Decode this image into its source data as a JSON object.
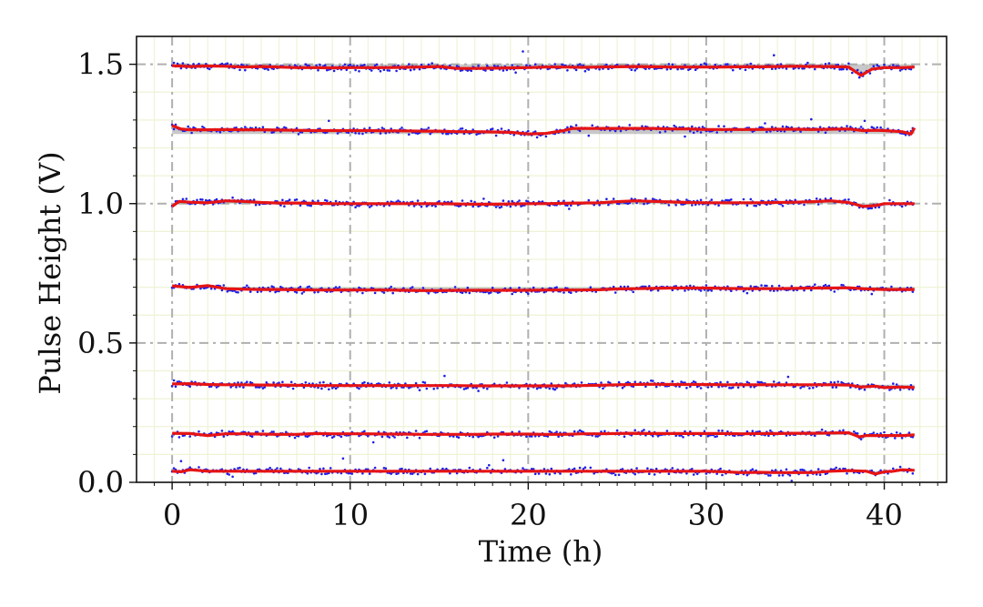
{
  "chart_data": {
    "type": "line",
    "title": "",
    "xlabel": "Time (h)",
    "ylabel": "Pulse Height (V)",
    "xlim": [
      -2,
      43.5
    ],
    "ylim": [
      0.0,
      1.6
    ],
    "xticks": [
      0,
      10,
      20,
      30,
      40
    ],
    "xtick_labels": [
      "0",
      "10",
      "20",
      "30",
      "40"
    ],
    "yticks": [
      0.0,
      0.5,
      1.0,
      1.5
    ],
    "ytick_labels": [
      "0.0",
      "0.5",
      "1.0",
      "1.5"
    ],
    "grid": {
      "major": true,
      "minor": true
    },
    "legend": "none",
    "colors": {
      "scatter": "#1f1fe6",
      "fit_line": "#e61414",
      "band": "#9a9a9a",
      "major_grid": "#b0b0b0",
      "minor_grid": "#eef3d6"
    },
    "series": [
      {
        "level": 1.5,
        "x": [
          0,
          1,
          2,
          3,
          4,
          5,
          6,
          7,
          8,
          9,
          10,
          11,
          12,
          13,
          14,
          15,
          16,
          17,
          18,
          19,
          20,
          21,
          22,
          23,
          24,
          25,
          26,
          27,
          28,
          29,
          30,
          31,
          32,
          33,
          34,
          35,
          36,
          37,
          38,
          38.7,
          39.3,
          40,
          41,
          41.7
        ],
        "y": [
          1.495,
          1.492,
          1.494,
          1.493,
          1.49,
          1.492,
          1.49,
          1.488,
          1.488,
          1.487,
          1.488,
          1.488,
          1.488,
          1.489,
          1.49,
          1.492,
          1.485,
          1.485,
          1.486,
          1.487,
          1.488,
          1.49,
          1.49,
          1.489,
          1.49,
          1.491,
          1.492,
          1.491,
          1.49,
          1.49,
          1.49,
          1.49,
          1.491,
          1.491,
          1.492,
          1.493,
          1.492,
          1.492,
          1.49,
          1.46,
          1.482,
          1.488,
          1.488,
          1.49
        ]
      },
      {
        "level": 1.25,
        "x": [
          0,
          0.5,
          1,
          2,
          3,
          4,
          5,
          6,
          7,
          8,
          9,
          10,
          11,
          12,
          13,
          14,
          15,
          16,
          17,
          18,
          19,
          20,
          21,
          22,
          22.5,
          23,
          24,
          25,
          26,
          27,
          28,
          29,
          30,
          31,
          32,
          33,
          34,
          35,
          36,
          37,
          38,
          38.8,
          39.5,
          40,
          41,
          41.5,
          41.7
        ],
        "y": [
          1.28,
          1.268,
          1.265,
          1.265,
          1.266,
          1.265,
          1.265,
          1.264,
          1.263,
          1.262,
          1.262,
          1.262,
          1.262,
          1.261,
          1.261,
          1.26,
          1.26,
          1.258,
          1.258,
          1.257,
          1.256,
          1.25,
          1.252,
          1.262,
          1.27,
          1.27,
          1.27,
          1.27,
          1.27,
          1.27,
          1.268,
          1.268,
          1.266,
          1.266,
          1.266,
          1.266,
          1.267,
          1.267,
          1.266,
          1.267,
          1.268,
          1.262,
          1.263,
          1.262,
          1.258,
          1.25,
          1.272
        ]
      },
      {
        "level": 1.0,
        "x": [
          0,
          0.4,
          1,
          2,
          3,
          4,
          5,
          6,
          7,
          8,
          9,
          10,
          11,
          12,
          13,
          14,
          15,
          16,
          17,
          18,
          19,
          20,
          21,
          22,
          23,
          24,
          25,
          26,
          27,
          28,
          29,
          30,
          31,
          32,
          33,
          34,
          35,
          36,
          37,
          38,
          38.8,
          39.5,
          40,
          41,
          41.7
        ],
        "y": [
          0.99,
          1.008,
          1.005,
          1.003,
          1.01,
          1.008,
          1.004,
          1.002,
          1.002,
          1.001,
          1.0,
          1.0,
          1.0,
          1.0,
          1.0,
          1.0,
          1.0,
          0.999,
          0.998,
          0.998,
          0.999,
          1.0,
          1.0,
          1.001,
          1.002,
          1.003,
          1.007,
          1.01,
          1.008,
          1.006,
          1.004,
          1.003,
          1.003,
          1.003,
          1.003,
          1.004,
          1.005,
          1.007,
          1.01,
          1.004,
          0.99,
          0.993,
          1.0,
          1.0,
          1.0
        ]
      },
      {
        "level": 0.7,
        "x": [
          0,
          1,
          2,
          3,
          4,
          5,
          6,
          7,
          8,
          9,
          10,
          11,
          12,
          13,
          14,
          15,
          16,
          17,
          18,
          19,
          20,
          21,
          22,
          23,
          24,
          25,
          26,
          27,
          28,
          29,
          30,
          31,
          32,
          33,
          34,
          35,
          36,
          37,
          38,
          39,
          40,
          41,
          41.7
        ],
        "y": [
          0.705,
          0.699,
          0.706,
          0.695,
          0.693,
          0.692,
          0.692,
          0.691,
          0.69,
          0.69,
          0.69,
          0.69,
          0.69,
          0.689,
          0.688,
          0.688,
          0.689,
          0.689,
          0.689,
          0.689,
          0.689,
          0.69,
          0.69,
          0.69,
          0.691,
          0.694,
          0.695,
          0.696,
          0.697,
          0.697,
          0.697,
          0.696,
          0.695,
          0.695,
          0.695,
          0.696,
          0.697,
          0.697,
          0.698,
          0.694,
          0.692,
          0.692,
          0.692
        ]
      },
      {
        "level": 0.35,
        "x": [
          0,
          1,
          2,
          3,
          4,
          5,
          6,
          7,
          8,
          9,
          10,
          11,
          12,
          13,
          14,
          15,
          16,
          17,
          18,
          19,
          20,
          21,
          22,
          23,
          24,
          25,
          26,
          27,
          28,
          29,
          30,
          31,
          32,
          33,
          34,
          35,
          36,
          37,
          38,
          38.7,
          39.5,
          40,
          41,
          41.7
        ],
        "y": [
          0.353,
          0.354,
          0.351,
          0.35,
          0.35,
          0.349,
          0.349,
          0.348,
          0.347,
          0.347,
          0.347,
          0.347,
          0.347,
          0.347,
          0.347,
          0.347,
          0.347,
          0.346,
          0.346,
          0.346,
          0.346,
          0.346,
          0.346,
          0.347,
          0.348,
          0.35,
          0.351,
          0.352,
          0.351,
          0.351,
          0.351,
          0.35,
          0.35,
          0.35,
          0.35,
          0.35,
          0.35,
          0.35,
          0.349,
          0.342,
          0.345,
          0.34,
          0.342,
          0.34
        ]
      },
      {
        "level": 0.17,
        "x": [
          0,
          1,
          2,
          3,
          4,
          5,
          6,
          7,
          8,
          9,
          10,
          11,
          12,
          13,
          14,
          15,
          16,
          17,
          18,
          19,
          20,
          21,
          22,
          23,
          24,
          25,
          26,
          27,
          28,
          29,
          30,
          31,
          32,
          33,
          34,
          35,
          36,
          37,
          38,
          38.6,
          39,
          40,
          41,
          41.7
        ],
        "y": [
          0.176,
          0.175,
          0.168,
          0.174,
          0.174,
          0.173,
          0.172,
          0.172,
          0.175,
          0.174,
          0.174,
          0.174,
          0.173,
          0.173,
          0.172,
          0.172,
          0.172,
          0.172,
          0.173,
          0.173,
          0.173,
          0.172,
          0.172,
          0.174,
          0.174,
          0.175,
          0.176,
          0.175,
          0.175,
          0.175,
          0.175,
          0.175,
          0.174,
          0.175,
          0.175,
          0.176,
          0.176,
          0.177,
          0.178,
          0.163,
          0.168,
          0.168,
          0.168,
          0.17
        ]
      },
      {
        "level": 0.04,
        "x": [
          0,
          0.5,
          1,
          2,
          3,
          4,
          5,
          6,
          7,
          8,
          9,
          10,
          11,
          12,
          13,
          14,
          15,
          16,
          17,
          18,
          19,
          20,
          21,
          22,
          23,
          24,
          25,
          26,
          27,
          28,
          29,
          30,
          31,
          32,
          33,
          34,
          35,
          36,
          37,
          38,
          39,
          39.5,
          40,
          40.5,
          41,
          41.7
        ],
        "y": [
          0.04,
          0.038,
          0.045,
          0.04,
          0.04,
          0.04,
          0.04,
          0.04,
          0.04,
          0.04,
          0.04,
          0.04,
          0.04,
          0.04,
          0.04,
          0.04,
          0.04,
          0.04,
          0.04,
          0.04,
          0.04,
          0.04,
          0.04,
          0.04,
          0.04,
          0.04,
          0.04,
          0.04,
          0.04,
          0.04,
          0.04,
          0.04,
          0.038,
          0.035,
          0.036,
          0.035,
          0.035,
          0.035,
          0.04,
          0.042,
          0.04,
          0.03,
          0.038,
          0.04,
          0.045,
          0.043
        ]
      }
    ]
  }
}
